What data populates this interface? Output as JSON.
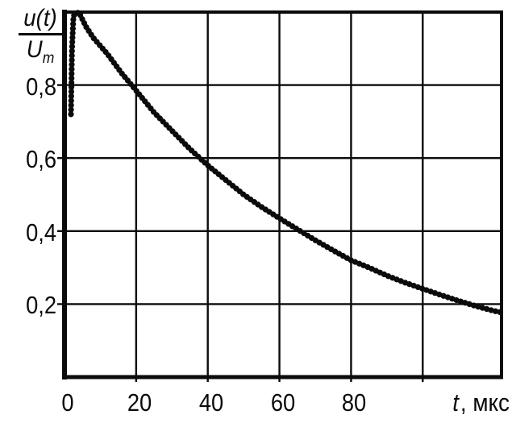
{
  "chart_data": {
    "type": "line",
    "title": "",
    "xlabel": {
      "variable": "t",
      "unit": ", мкс",
      "text": "t, мкс"
    },
    "ylabel": {
      "numerator": "u(t)",
      "denominator_base": "U",
      "denominator_sub": "m",
      "text": "u(t)/Um"
    },
    "xlim": [
      0,
      122
    ],
    "ylim": [
      0,
      1.0
    ],
    "grid": true,
    "legend": false,
    "x_gridlines": [
      20,
      40,
      60,
      80,
      100
    ],
    "y_gridlines": [
      0.2,
      0.4,
      0.6,
      0.8
    ],
    "x_ticks": [
      {
        "t": 0,
        "label": "0"
      },
      {
        "t": 20,
        "label": "20"
      },
      {
        "t": 40,
        "label": "40"
      },
      {
        "t": 60,
        "label": "60"
      },
      {
        "t": 80,
        "label": "80"
      }
    ],
    "y_ticks": [
      {
        "u": 0.8,
        "label": "0,8"
      },
      {
        "u": 0.6,
        "label": "0,6"
      },
      {
        "u": 0.4,
        "label": "0,4"
      },
      {
        "u": 0.2,
        "label": "0,2"
      }
    ],
    "series": [
      {
        "name": "normalized-voltage-decay-trace",
        "style": "thick beaded oscillogram trace, exponential discharge, time constant ~70 мкс",
        "points": [
          [
            1.8,
            0.72
          ],
          [
            2.1,
            0.9
          ],
          [
            2.5,
            0.99
          ],
          [
            4,
            1.0
          ],
          [
            6,
            0.96
          ],
          [
            8,
            0.93
          ],
          [
            12,
            0.885
          ],
          [
            16,
            0.832
          ],
          [
            20,
            0.785
          ],
          [
            25,
            0.725
          ],
          [
            30,
            0.675
          ],
          [
            35,
            0.625
          ],
          [
            40,
            0.58
          ],
          [
            45,
            0.54
          ],
          [
            50,
            0.5
          ],
          [
            55,
            0.466
          ],
          [
            60,
            0.435
          ],
          [
            65,
            0.405
          ],
          [
            70,
            0.375
          ],
          [
            75,
            0.347
          ],
          [
            80,
            0.32
          ],
          [
            85,
            0.3
          ],
          [
            90,
            0.278
          ],
          [
            95,
            0.259
          ],
          [
            100,
            0.242
          ],
          [
            105,
            0.225
          ],
          [
            110,
            0.209
          ],
          [
            115,
            0.194
          ],
          [
            120,
            0.181
          ],
          [
            122,
            0.177
          ]
        ]
      }
    ],
    "colors": {
      "ink": "#0b0b0b",
      "background": "#ffffff"
    }
  }
}
